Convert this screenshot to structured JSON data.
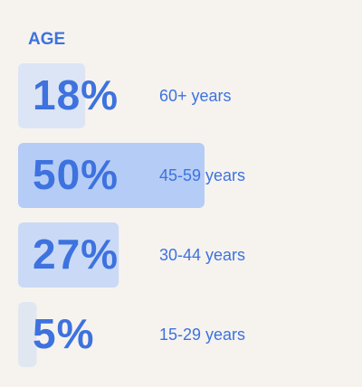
{
  "chart_data": {
    "type": "bar",
    "orientation": "horizontal",
    "title": "AGE",
    "categories": [
      "60+ years",
      "45-59 years",
      "30-44 years",
      "15-29 years"
    ],
    "values": [
      18,
      50,
      27,
      5
    ],
    "value_labels": [
      "18%",
      "50%",
      "27%",
      "5%"
    ],
    "colors": [
      "#dce5f5",
      "#b5ccf6",
      "#cadaf6",
      "#e1e7f1"
    ],
    "text_color": "#3d72df"
  }
}
